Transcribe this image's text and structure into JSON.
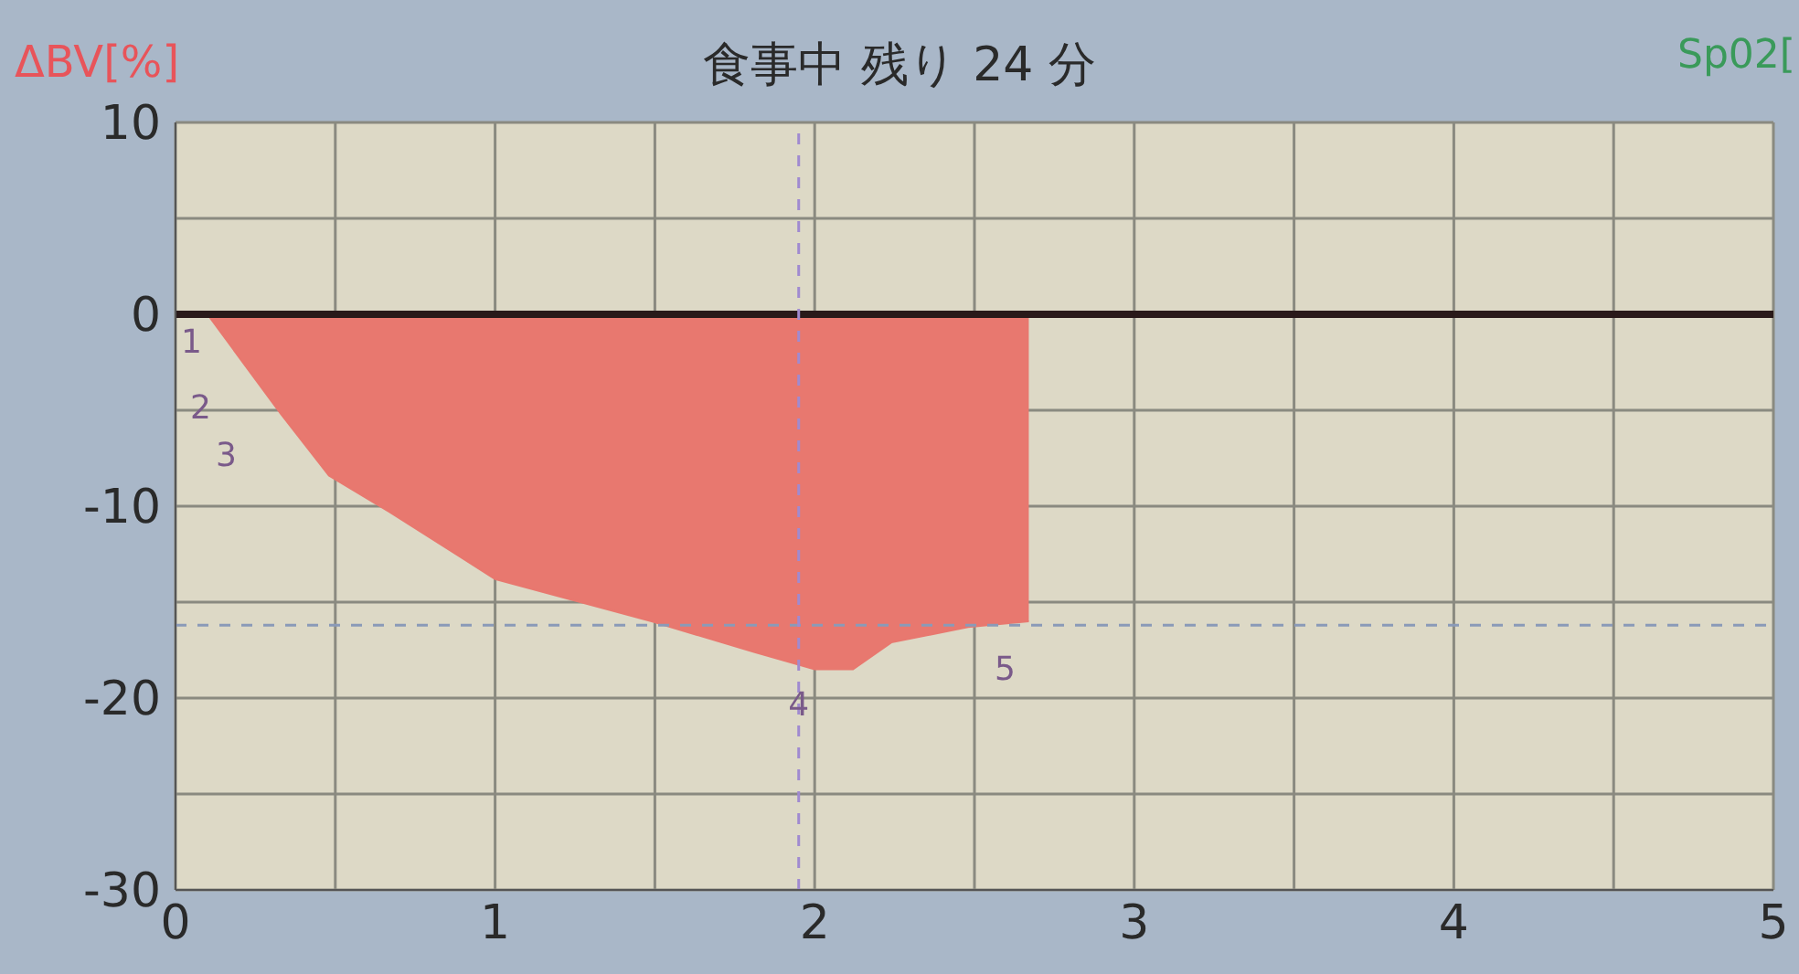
{
  "chart_data": {
    "type": "area",
    "title": "食事中 残り 24 分",
    "ylabel": "ΔBV[%]",
    "y2label": "Sp02[",
    "x": [
      0,
      0.1,
      0.33,
      0.48,
      0.67,
      1.0,
      1.49,
      1.81,
      2.0,
      2.12,
      2.24,
      2.48,
      2.67
    ],
    "series": [
      {
        "color": "#e8786f",
        "values": [
          0,
          0,
          -5.2,
          -8.4,
          -10.3,
          -13.8,
          -16.0,
          -17.6,
          -18.5,
          -18.5,
          -17.1,
          -16.3,
          -16.0
        ]
      }
    ],
    "xlim": [
      0,
      5
    ],
    "ylim": [
      -30,
      10
    ],
    "xticks": [
      0,
      {
        "value": 0.5,
        "label": null
      },
      1,
      {
        "value": 1.5,
        "label": null
      },
      2,
      {
        "value": 2.5,
        "label": null
      },
      3,
      {
        "value": 3.5,
        "label": null
      },
      4,
      {
        "value": 4.5,
        "label": null
      },
      5
    ],
    "yticks": [
      -30,
      {
        "value": -25,
        "label": null
      },
      -20,
      {
        "value": -15,
        "label": null
      },
      -10,
      {
        "value": -5,
        "label": null
      },
      0,
      {
        "value": 5,
        "label": null
      },
      10
    ],
    "grid": true,
    "ref_lines": [
      {
        "axis": "y",
        "value": 0,
        "color": "#2a1a1a",
        "line_style": "solid"
      },
      {
        "axis": "y",
        "value": -16.2,
        "color": "#8a9ab8",
        "line_style": "dashed"
      },
      {
        "axis": "x",
        "value": 1.95,
        "color": "#a08ad0",
        "line_style": "dashed"
      }
    ],
    "annotations": [
      "1",
      "2",
      "3",
      {
        "text": "4",
        "x": 1.95,
        "y": -20.3
      },
      "5"
    ]
  }
}
